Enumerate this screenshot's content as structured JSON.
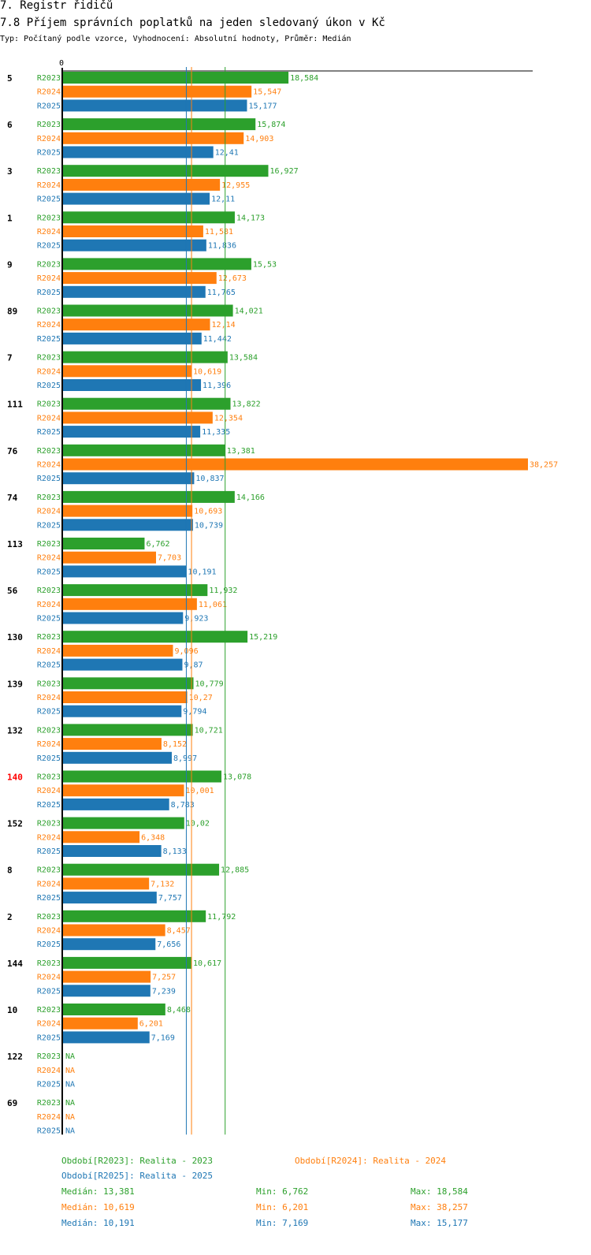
{
  "heading": {
    "section": "7. Registr řidičů",
    "title": "7.8 Příjem správních poplatků na jeden sledovaný úkon v Kč",
    "subtitle": "Typ: Počítaný podle vzorce, Vyhodnocení: Absolutní hodnoty, Průměr: Medián"
  },
  "colors": {
    "R2023": "#2ca02c",
    "R2024": "#ff7f0e",
    "R2025": "#1f77b4",
    "highlight": "#ff0000",
    "axis": "#000000"
  },
  "chart_data": {
    "type": "bar",
    "orientation": "horizontal",
    "title": "7.8 Příjem správních poplatků na jeden sledovaný úkon v Kč",
    "xlim": [
      0,
      38.257
    ],
    "axis_origin_label": "0",
    "series_names": [
      "R2023",
      "R2024",
      "R2025"
    ],
    "highlighted_category": "140",
    "categories": [
      "5",
      "6",
      "3",
      "1",
      "9",
      "89",
      "7",
      "111",
      "76",
      "74",
      "113",
      "56",
      "130",
      "139",
      "132",
      "140",
      "152",
      "8",
      "2",
      "144",
      "10",
      "122",
      "69"
    ],
    "series": [
      {
        "name": "R2023",
        "values": [
          18.584,
          15.874,
          16.927,
          14.173,
          15.53,
          14.021,
          13.584,
          13.822,
          13.381,
          14.166,
          6.762,
          11.932,
          15.219,
          10.779,
          10.721,
          13.078,
          10.02,
          12.885,
          11.792,
          10.617,
          8.468,
          null,
          null
        ],
        "labels": [
          "18,584",
          "15,874",
          "16,927",
          "14,173",
          "15,53",
          "14,021",
          "13,584",
          "13,822",
          "13,381",
          "14,166",
          "6,762",
          "11,932",
          "15,219",
          "10,779",
          "10,721",
          "13,078",
          "10,02",
          "12,885",
          "11,792",
          "10,617",
          "8,468",
          "NA",
          "NA"
        ]
      },
      {
        "name": "R2024",
        "values": [
          15.547,
          14.903,
          12.955,
          11.581,
          12.673,
          12.14,
          10.619,
          12.354,
          38.257,
          10.693,
          7.703,
          11.061,
          9.096,
          10.27,
          8.152,
          10.001,
          6.348,
          7.132,
          8.457,
          7.257,
          6.201,
          null,
          null
        ],
        "labels": [
          "15,547",
          "14,903",
          "12,955",
          "11,581",
          "12,673",
          "12,14",
          "10,619",
          "12,354",
          "38,257",
          "10,693",
          "7,703",
          "11,061",
          "9,096",
          "10,27",
          "8,152",
          "10,001",
          "6,348",
          "7,132",
          "8,457",
          "7,257",
          "6,201",
          "NA",
          "NA"
        ]
      },
      {
        "name": "R2025",
        "values": [
          15.177,
          12.41,
          12.11,
          11.836,
          11.765,
          11.442,
          11.396,
          11.335,
          10.837,
          10.739,
          10.191,
          9.923,
          9.87,
          9.794,
          8.997,
          8.783,
          8.133,
          7.757,
          7.656,
          7.239,
          7.169,
          null,
          null
        ],
        "labels": [
          "15,177",
          "12,41",
          "12,11",
          "11,836",
          "11,765",
          "11,442",
          "11,396",
          "11,335",
          "10,837",
          "10,739",
          "10,191",
          "9,923",
          "9,87",
          "9,794",
          "8,997",
          "8,783",
          "8,133",
          "7,757",
          "7,656",
          "7,239",
          "7,169",
          "NA",
          "NA"
        ]
      }
    ],
    "reference_lines": [
      {
        "series": "R2023",
        "value": 13.381
      },
      {
        "series": "R2024",
        "value": 10.619
      },
      {
        "series": "R2025",
        "value": 10.191
      }
    ]
  },
  "footer": {
    "legend": {
      "R2023": "Období[R2023]: Realita - 2023",
      "R2024": "Období[R2024]: Realita - 2024",
      "R2025": "Období[R2025]: Realita - 2025"
    },
    "stats": [
      {
        "series": "R2023",
        "median": "Medián: 13,381",
        "min": "Min: 6,762",
        "max": "Max: 18,584"
      },
      {
        "series": "R2024",
        "median": "Medián: 10,619",
        "min": "Min: 6,201",
        "max": "Max: 38,257"
      },
      {
        "series": "R2025",
        "median": "Medián: 10,191",
        "min": "Min: 7,169",
        "max": "Max: 15,177"
      }
    ]
  }
}
